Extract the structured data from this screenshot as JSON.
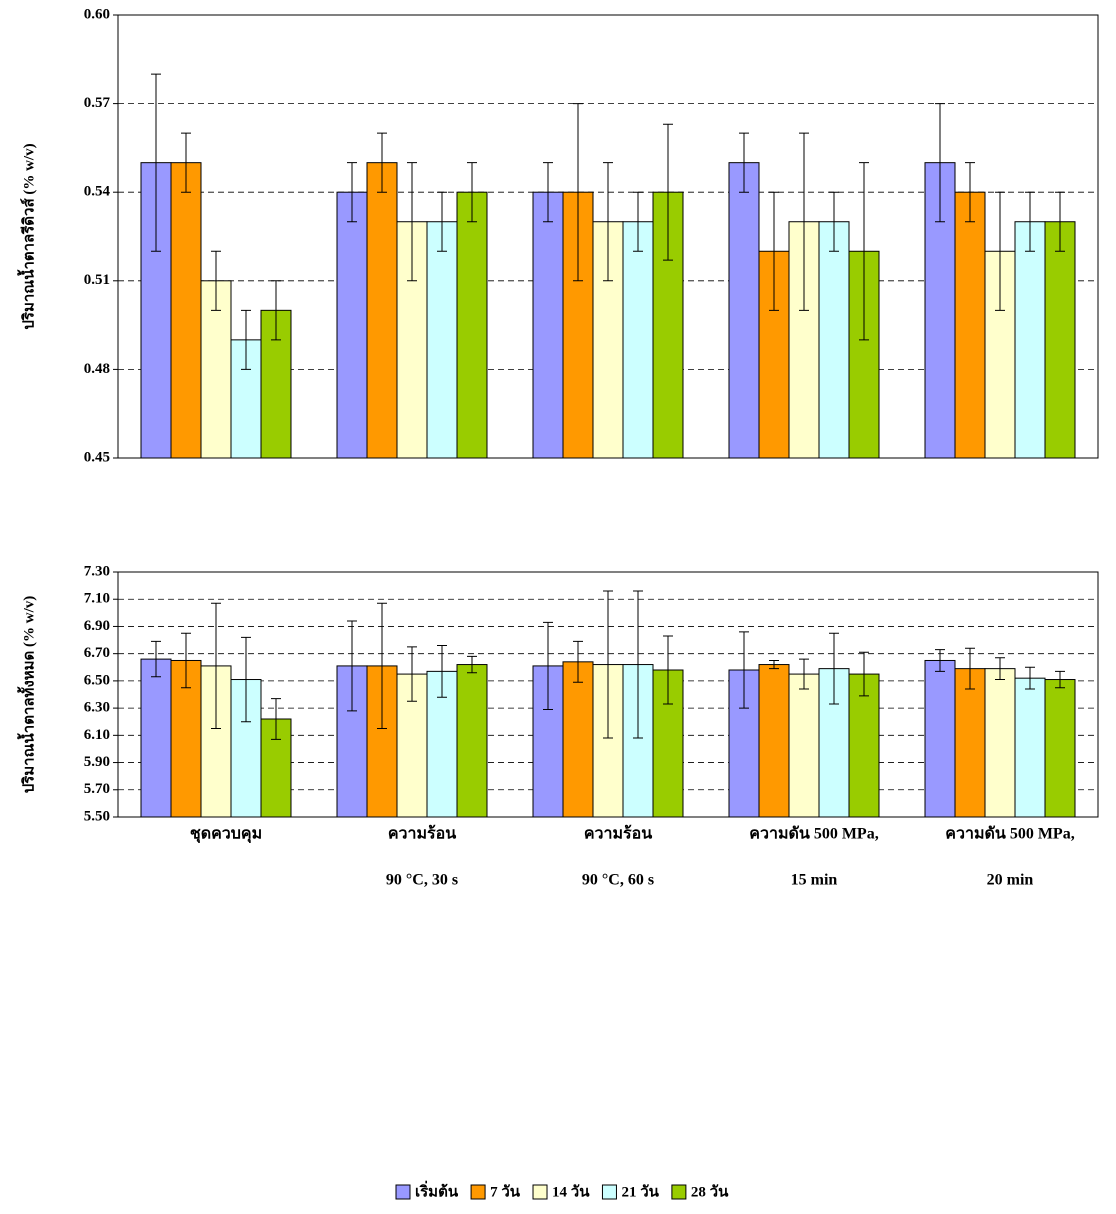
{
  "chart_data": [
    {
      "type": "bar",
      "ylabel": "ปริมาณน้ำตาลรีดิวส์ (% w/v)",
      "ylim": [
        0.45,
        0.6
      ],
      "yticks": [
        0.45,
        0.48,
        0.51,
        0.54,
        0.57,
        {
          "value": 0.6,
          "label": "0.60"
        }
      ],
      "grid": true,
      "series": [
        {
          "color": "#9999ff",
          "values": [
            0.55,
            0.54,
            0.54,
            0.55,
            0.55
          ],
          "errors": [
            0.03,
            0.01,
            0.01,
            0.01,
            0.02
          ]
        },
        {
          "color": "#ff9900",
          "values": [
            0.55,
            0.55,
            0.54,
            0.52,
            0.54
          ],
          "errors": [
            0.01,
            0.01,
            0.03,
            0.02,
            0.01
          ]
        },
        {
          "color": "#ffffcc",
          "values": [
            0.51,
            0.53,
            0.53,
            0.53,
            0.52
          ],
          "errors": [
            0.01,
            0.02,
            0.02,
            0.03,
            0.02
          ]
        },
        {
          "color": "#ccffff",
          "values": [
            0.49,
            0.53,
            0.53,
            0.53,
            0.53
          ],
          "errors": [
            0.01,
            0.01,
            0.01,
            0.01,
            0.01
          ]
        },
        {
          "color": "#99cc00",
          "values": [
            0.5,
            0.54,
            0.54,
            0.52,
            0.53
          ],
          "errors": [
            0.01,
            0.01,
            0.023,
            0.03,
            0.01
          ]
        }
      ]
    },
    {
      "type": "bar",
      "ylabel": "ปริมาณน้ำตาลทั้งหมด (% w/v)",
      "ylim": [
        5.5,
        7.3
      ],
      "yticks": [
        {
          "value": 5.5,
          "label": "5.50"
        },
        {
          "value": 5.7,
          "label": "5.70"
        },
        {
          "value": 5.9,
          "label": "5.90"
        },
        {
          "value": 6.1,
          "label": "6.10"
        },
        {
          "value": 6.3,
          "label": "6.30"
        },
        {
          "value": 6.5,
          "label": "6.50"
        },
        {
          "value": 6.7,
          "label": "6.70"
        },
        {
          "value": 6.9,
          "label": "6.90"
        },
        {
          "value": 7.1,
          "label": "7.10"
        },
        {
          "value": 7.3,
          "label": "7.30"
        }
      ],
      "grid": true,
      "categories": [
        [
          "ชุดควบคุม"
        ],
        [
          "ความร้อน",
          "90 °C, 30 s"
        ],
        [
          "ความร้อน",
          "90 °C, 60 s"
        ],
        [
          "ความดัน 500 MPa,",
          "15 min"
        ],
        [
          "ความดัน 500 MPa,",
          "20 min"
        ]
      ],
      "series": [
        {
          "name": "เริ่มต้น",
          "color": "#9999ff",
          "values": [
            6.66,
            6.61,
            6.61,
            6.58,
            6.65
          ],
          "errors": [
            0.13,
            0.33,
            0.32,
            0.28,
            0.08
          ]
        },
        {
          "name": "7 วัน",
          "color": "#ff9900",
          "values": [
            6.65,
            6.61,
            6.64,
            6.62,
            6.59
          ],
          "errors": [
            0.2,
            0.46,
            0.15,
            0.03,
            0.15
          ]
        },
        {
          "name": "14 วัน",
          "color": "#ffffcc",
          "values": [
            6.61,
            6.55,
            6.62,
            6.55,
            6.59
          ],
          "errors": [
            0.46,
            0.2,
            0.54,
            0.11,
            0.08
          ]
        },
        {
          "name": "21 วัน",
          "color": "#ccffff",
          "values": [
            6.51,
            6.57,
            6.62,
            6.59,
            6.52
          ],
          "errors": [
            0.31,
            0.19,
            0.54,
            0.26,
            0.08
          ]
        },
        {
          "name": "28 วัน",
          "color": "#99cc00",
          "values": [
            6.22,
            6.62,
            6.58,
            6.55,
            6.51
          ],
          "errors": [
            0.15,
            0.06,
            0.25,
            0.16,
            0.06
          ]
        }
      ]
    }
  ]
}
